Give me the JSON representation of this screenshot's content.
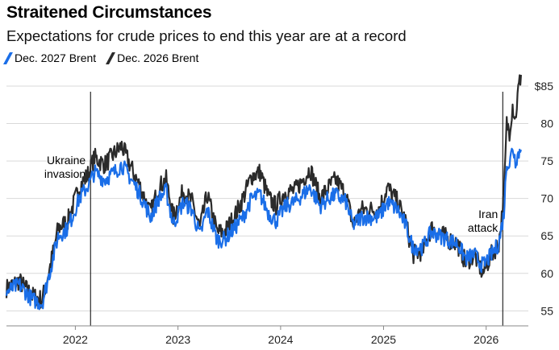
{
  "header": {
    "title": "Straitened Circumstances",
    "subtitle": "Expectations for crude prices to end this year are at a record"
  },
  "colors": {
    "series_2027": "#1a6ee8",
    "series_2026": "#2b2b2b",
    "grid": "#d9d9d9"
  },
  "chart_data": {
    "type": "line",
    "x_unit": "date",
    "y_unit": "USD per barrel",
    "xlim": [
      "2021-05-01",
      "2026-05-31"
    ],
    "ylim": [
      53,
      86.5
    ],
    "x_ticks": [
      {
        "date": "2022-01-01",
        "label": "2022"
      },
      {
        "date": "2023-01-01",
        "label": "2023"
      },
      {
        "date": "2024-01-01",
        "label": "2024"
      },
      {
        "date": "2025-01-01",
        "label": "2025"
      },
      {
        "date": "2026-01-01",
        "label": "2026"
      }
    ],
    "y_ticks": [
      {
        "value": 55,
        "label": "55"
      },
      {
        "value": 60,
        "label": "60"
      },
      {
        "value": 65,
        "label": "65"
      },
      {
        "value": 70,
        "label": "70"
      },
      {
        "value": 75,
        "label": "75"
      },
      {
        "value": 80,
        "label": "80"
      },
      {
        "value": 85,
        "label": "$85"
      }
    ],
    "grid": true,
    "legend": "top-left",
    "annotations": [
      {
        "date": "2022-02-24",
        "lines": [
          "Ukraine",
          "invasion"
        ]
      },
      {
        "date": "2026-03-01",
        "lines": [
          "Iran",
          "attack"
        ]
      }
    ],
    "series": [
      {
        "name": "Dec. 2026 Brent",
        "color": "#2b2b2b",
        "points": [
          [
            "2021-05-01",
            58.0
          ],
          [
            "2021-06-15",
            59.0
          ],
          [
            "2021-08-01",
            57.0
          ],
          [
            "2021-09-05",
            56.5
          ],
          [
            "2021-10-01",
            60.5
          ],
          [
            "2021-11-01",
            66.0
          ],
          [
            "2021-12-05",
            67.0
          ],
          [
            "2022-01-15",
            71.5
          ],
          [
            "2022-02-20",
            73.5
          ],
          [
            "2022-03-10",
            75.5
          ],
          [
            "2022-04-15",
            74.5
          ],
          [
            "2022-05-20",
            76.0
          ],
          [
            "2022-06-15",
            77.0
          ],
          [
            "2022-07-20",
            74.0
          ],
          [
            "2022-08-20",
            71.5
          ],
          [
            "2022-09-25",
            68.0
          ],
          [
            "2022-10-25",
            71.5
          ],
          [
            "2022-11-20",
            72.5
          ],
          [
            "2022-12-15",
            67.5
          ],
          [
            "2023-01-20",
            71.0
          ],
          [
            "2023-02-20",
            69.5
          ],
          [
            "2023-03-20",
            66.0
          ],
          [
            "2023-04-15",
            70.5
          ],
          [
            "2023-05-20",
            65.5
          ],
          [
            "2023-06-15",
            65.5
          ],
          [
            "2023-07-20",
            67.5
          ],
          [
            "2023-08-20",
            70.0
          ],
          [
            "2023-09-20",
            73.0
          ],
          [
            "2023-10-20",
            73.5
          ],
          [
            "2023-11-20",
            70.0
          ],
          [
            "2023-12-15",
            69.0
          ],
          [
            "2024-01-20",
            71.0
          ],
          [
            "2024-02-20",
            71.0
          ],
          [
            "2024-03-20",
            72.5
          ],
          [
            "2024-04-15",
            74.0
          ],
          [
            "2024-05-20",
            70.0
          ],
          [
            "2024-06-20",
            71.5
          ],
          [
            "2024-07-15",
            72.5
          ],
          [
            "2024-08-20",
            70.5
          ],
          [
            "2024-09-15",
            66.5
          ],
          [
            "2024-10-15",
            68.5
          ],
          [
            "2024-11-20",
            68.5
          ],
          [
            "2024-12-15",
            68.5
          ],
          [
            "2025-01-15",
            71.5
          ],
          [
            "2025-02-20",
            69.5
          ],
          [
            "2025-03-20",
            67.0
          ],
          [
            "2025-04-15",
            62.5
          ],
          [
            "2025-05-20",
            63.0
          ],
          [
            "2025-06-20",
            66.0
          ],
          [
            "2025-07-20",
            65.5
          ],
          [
            "2025-08-20",
            64.5
          ],
          [
            "2025-09-20",
            64.0
          ],
          [
            "2025-10-20",
            61.5
          ],
          [
            "2025-11-20",
            62.5
          ],
          [
            "2025-12-20",
            60.0
          ],
          [
            "2026-01-20",
            62.5
          ],
          [
            "2026-02-15",
            64.0
          ],
          [
            "2026-03-05",
            70.0
          ],
          [
            "2026-03-15",
            80.0
          ],
          [
            "2026-03-25",
            79.0
          ],
          [
            "2026-04-05",
            82.5
          ],
          [
            "2026-04-15",
            80.5
          ],
          [
            "2026-04-25",
            84.5
          ],
          [
            "2026-05-05",
            86.5
          ]
        ]
      },
      {
        "name": "Dec. 2027 Brent",
        "color": "#1a6ee8",
        "points": [
          [
            "2021-05-01",
            57.5
          ],
          [
            "2021-06-15",
            58.5
          ],
          [
            "2021-08-01",
            56.5
          ],
          [
            "2021-09-05",
            56.0
          ],
          [
            "2021-10-01",
            60.0
          ],
          [
            "2021-11-01",
            65.0
          ],
          [
            "2021-12-05",
            66.0
          ],
          [
            "2022-01-15",
            70.0
          ],
          [
            "2022-02-20",
            72.0
          ],
          [
            "2022-03-10",
            73.5
          ],
          [
            "2022-04-15",
            72.5
          ],
          [
            "2022-05-20",
            73.5
          ],
          [
            "2022-06-15",
            74.5
          ],
          [
            "2022-07-20",
            72.5
          ],
          [
            "2022-08-20",
            70.5
          ],
          [
            "2022-09-25",
            67.5
          ],
          [
            "2022-10-25",
            70.0
          ],
          [
            "2022-11-20",
            71.0
          ],
          [
            "2022-12-15",
            66.5
          ],
          [
            "2023-01-20",
            69.5
          ],
          [
            "2023-02-20",
            68.5
          ],
          [
            "2023-03-20",
            65.0
          ],
          [
            "2023-04-15",
            68.5
          ],
          [
            "2023-05-20",
            64.5
          ],
          [
            "2023-06-15",
            64.5
          ],
          [
            "2023-07-20",
            66.0
          ],
          [
            "2023-08-20",
            67.5
          ],
          [
            "2023-09-20",
            70.0
          ],
          [
            "2023-10-20",
            70.5
          ],
          [
            "2023-11-20",
            68.0
          ],
          [
            "2023-12-15",
            67.0
          ],
          [
            "2024-01-20",
            69.0
          ],
          [
            "2024-02-20",
            69.5
          ],
          [
            "2024-03-20",
            70.5
          ],
          [
            "2024-04-15",
            71.5
          ],
          [
            "2024-05-20",
            69.0
          ],
          [
            "2024-06-20",
            70.0
          ],
          [
            "2024-07-15",
            70.5
          ],
          [
            "2024-08-20",
            69.5
          ],
          [
            "2024-09-15",
            66.5
          ],
          [
            "2024-10-15",
            67.5
          ],
          [
            "2024-11-20",
            67.5
          ],
          [
            "2024-12-15",
            67.5
          ],
          [
            "2025-01-15",
            69.5
          ],
          [
            "2025-02-20",
            68.5
          ],
          [
            "2025-03-20",
            66.5
          ],
          [
            "2025-04-15",
            63.5
          ],
          [
            "2025-05-20",
            63.5
          ],
          [
            "2025-06-20",
            65.5
          ],
          [
            "2025-07-20",
            65.0
          ],
          [
            "2025-08-20",
            64.5
          ],
          [
            "2025-09-20",
            64.0
          ],
          [
            "2025-10-20",
            62.0
          ],
          [
            "2025-11-20",
            62.5
          ],
          [
            "2025-12-20",
            61.0
          ],
          [
            "2026-01-20",
            62.5
          ],
          [
            "2026-02-15",
            64.0
          ],
          [
            "2026-03-05",
            68.0
          ],
          [
            "2026-03-15",
            75.0
          ],
          [
            "2026-03-25",
            74.5
          ],
          [
            "2026-04-05",
            77.0
          ],
          [
            "2026-04-15",
            75.0
          ],
          [
            "2026-04-25",
            76.0
          ],
          [
            "2026-05-05",
            76.5
          ]
        ]
      }
    ]
  }
}
